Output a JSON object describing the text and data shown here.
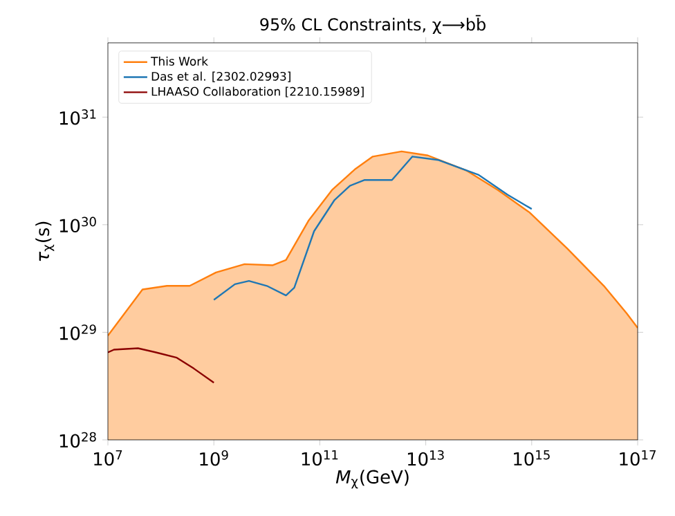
{
  "chart_data": {
    "type": "line",
    "title": "95% CL Constraints, χ⟶bb̄",
    "xlabel": "*M*$_{χ}$(GeV)",
    "ylabel": "*τ*$_{χ}$(s)",
    "log": "xy",
    "xlim": [
      10000000.0,
      1e+17
    ],
    "ylim": [
      1e+28,
      4.9e+31
    ],
    "xticks": [
      {
        "value": 10000000.0,
        "label": "10$^{7}$"
      },
      {
        "value": 1000000000.0,
        "label": "10$^{9}$"
      },
      {
        "value": 100000000000.0,
        "label": "10$^{11}$"
      },
      {
        "value": 10000000000000.0,
        "label": "10$^{13}$"
      },
      {
        "value": 1000000000000000.0,
        "label": "10$^{15}$"
      },
      {
        "value": 1e+17,
        "label": "10$^{17}$"
      }
    ],
    "yticks": [
      {
        "value": 1e+28,
        "label": "10$^{28}$"
      },
      {
        "value": 1e+29,
        "label": "10$^{29}$"
      },
      {
        "value": 1e+30,
        "label": "10$^{30}$"
      },
      {
        "value": 1e+31,
        "label": "10$^{31}$"
      }
    ],
    "legend": "top left",
    "grid": false,
    "series": [
      {
        "name": "This Work",
        "type": "area",
        "color": "#ff7f0e",
        "x": [
          10000000.0,
          45000000.0,
          130000000.0,
          350000000.0,
          1100000000.0,
          3800000000.0,
          13000000000.0,
          23000000000.0,
          62000000000.0,
          170000000000.0,
          470000000000.0,
          1000000000000.0,
          3500000000000.0,
          11000000000000.0,
          58000000000000.0,
          230000000000000.0,
          910000000000000.0,
          4700000000000000.0,
          2.3e+16,
          6.2e+16,
          1e+17
        ],
        "values": [
          9.3e+28,
          2.5e+29,
          2.7e+29,
          2.7e+29,
          3.6e+29,
          4.3e+29,
          4.2e+29,
          4.7e+29,
          1.1e+30,
          2.1e+30,
          3.3e+30,
          4.3e+30,
          4.8e+30,
          4.4e+30,
          3.2e+30,
          2.1e+30,
          1.3e+30,
          6e+29,
          2.7e+29,
          1.5e+29,
          1.1e+29
        ]
      },
      {
        "name": "Das et al. [2302.02993]",
        "color": "#1f77b4",
        "x": [
          1000000000.0,
          2500000000.0,
          4600000000.0,
          10000000000.0,
          23000000000.0,
          33000000000.0,
          78000000000.0,
          190000000000.0,
          370000000000.0,
          690000000000.0,
          2300000000000.0,
          5600000000000.0,
          17000000000000.0,
          100000000000000.0,
          350000000000000.0,
          1000000000000000.0
        ],
        "values": [
          2e+29,
          2.8e+29,
          3e+29,
          2.7e+29,
          2.2e+29,
          2.6e+29,
          8.7e+29,
          1.7e+30,
          2.3e+30,
          2.6e+30,
          2.6e+30,
          4.3e+30,
          4e+30,
          2.9e+30,
          1.9e+30,
          1.4e+30
        ]
      },
      {
        "name": "LHAASO Collaboration [2210.15989]",
        "color": "#8b0000",
        "x": [
          10000000.0,
          13000000.0,
          37000000.0,
          81000000.0,
          200000000.0,
          420000000.0,
          1000000000.0
        ],
        "values": [
          6.5e+28,
          6.9e+28,
          7.1e+28,
          6.5e+28,
          5.8e+28,
          4.6e+28,
          3.4e+28
        ]
      }
    ]
  }
}
